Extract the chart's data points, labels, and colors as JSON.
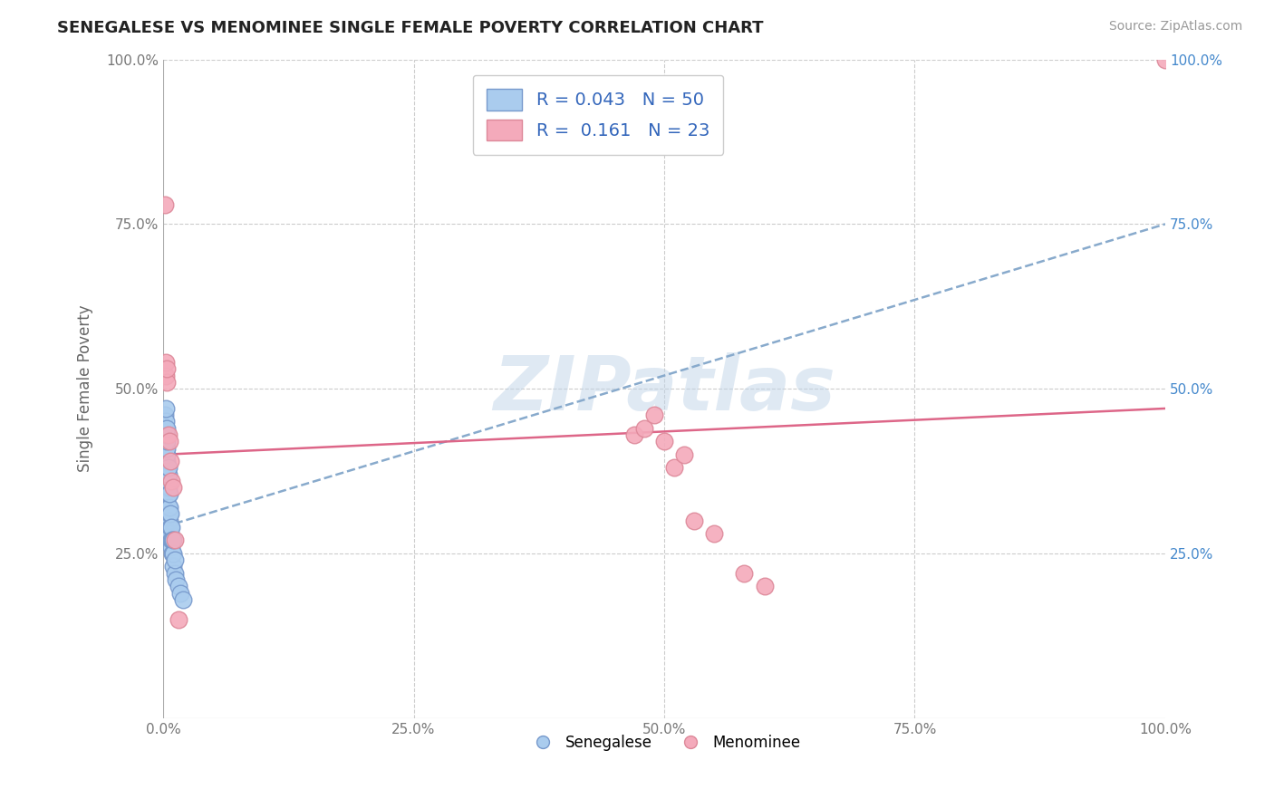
{
  "title": "SENEGALESE VS MENOMINEE SINGLE FEMALE POVERTY CORRELATION CHART",
  "source_text": "Source: ZipAtlas.com",
  "ylabel": "Single Female Poverty",
  "xlabel": "",
  "watermark": "ZIPatlas",
  "xlim": [
    0.0,
    1.0
  ],
  "ylim": [
    0.0,
    1.0
  ],
  "xticks": [
    0.0,
    0.25,
    0.5,
    0.75,
    1.0
  ],
  "yticks": [
    0.25,
    0.5,
    0.75,
    1.0
  ],
  "xtick_labels": [
    "0.0%",
    "25.0%",
    "50.0%",
    "75.0%",
    "100.0%"
  ],
  "ytick_labels_left": [
    "25.0%",
    "50.0%",
    "75.0%",
    "100.0%"
  ],
  "ytick_labels_right": [
    "25.0%",
    "50.0%",
    "75.0%",
    "100.0%"
  ],
  "senegalese_color": "#aaccee",
  "menominee_color": "#f4aabb",
  "senegalese_edge": "#7799cc",
  "menominee_edge": "#dd8899",
  "R_senegalese": 0.043,
  "N_senegalese": 50,
  "R_menominee": 0.161,
  "N_menominee": 23,
  "trend_senegalese_color": "#88aacc",
  "trend_menominee_color": "#dd6688",
  "trend_senegalese_y0": 0.29,
  "trend_senegalese_y1": 0.75,
  "trend_menominee_y0": 0.4,
  "trend_menominee_y1": 0.47,
  "legend_label_senegalese": "Senegalese",
  "legend_label_menominee": "Menominee",
  "senegalese_x": [
    0.002,
    0.002,
    0.002,
    0.003,
    0.003,
    0.003,
    0.003,
    0.003,
    0.003,
    0.003,
    0.004,
    0.004,
    0.004,
    0.004,
    0.004,
    0.004,
    0.004,
    0.004,
    0.004,
    0.004,
    0.005,
    0.005,
    0.005,
    0.005,
    0.005,
    0.005,
    0.005,
    0.006,
    0.006,
    0.006,
    0.006,
    0.006,
    0.007,
    0.007,
    0.007,
    0.007,
    0.008,
    0.008,
    0.008,
    0.009,
    0.009,
    0.01,
    0.01,
    0.01,
    0.012,
    0.012,
    0.013,
    0.015,
    0.017,
    0.02
  ],
  "senegalese_y": [
    0.42,
    0.44,
    0.46,
    0.38,
    0.4,
    0.41,
    0.43,
    0.44,
    0.45,
    0.47,
    0.33,
    0.35,
    0.37,
    0.38,
    0.39,
    0.4,
    0.41,
    0.42,
    0.43,
    0.44,
    0.3,
    0.32,
    0.34,
    0.35,
    0.36,
    0.37,
    0.38,
    0.28,
    0.3,
    0.31,
    0.32,
    0.34,
    0.27,
    0.28,
    0.29,
    0.31,
    0.26,
    0.27,
    0.29,
    0.25,
    0.27,
    0.23,
    0.25,
    0.27,
    0.22,
    0.24,
    0.21,
    0.2,
    0.19,
    0.18
  ],
  "menominee_x": [
    0.002,
    0.003,
    0.003,
    0.004,
    0.004,
    0.005,
    0.006,
    0.007,
    0.008,
    0.01,
    0.012,
    0.015,
    0.47,
    0.48,
    0.49,
    0.5,
    0.51,
    0.52,
    0.53,
    0.55,
    0.58,
    0.6,
    1.0
  ],
  "menominee_y": [
    0.78,
    0.52,
    0.54,
    0.51,
    0.53,
    0.43,
    0.42,
    0.39,
    0.36,
    0.35,
    0.27,
    0.15,
    0.43,
    0.44,
    0.46,
    0.42,
    0.38,
    0.4,
    0.3,
    0.28,
    0.22,
    0.2,
    1.0
  ]
}
